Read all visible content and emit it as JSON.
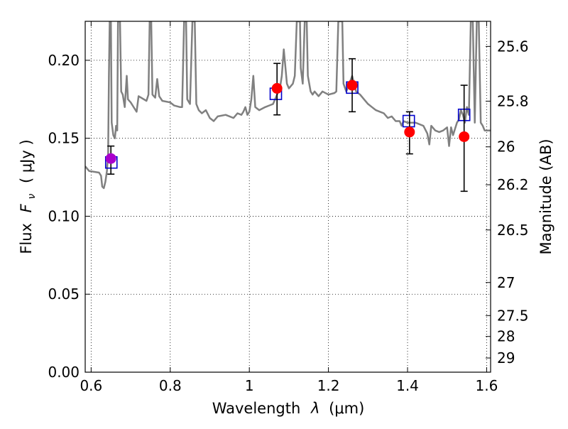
{
  "chart_data": {
    "type": "scatter",
    "xlabel_main": "Wavelength",
    "xlabel_symbol": "λ",
    "xlabel_unit": "(μm)",
    "ylabel_main": "Flux",
    "ylabel_symbol": "F",
    "ylabel_subscript": "ν",
    "ylabel_unit": "( μJy )",
    "y2label": "Magnitude (AB)",
    "xlim": [
      0.585,
      1.61
    ],
    "ylim": [
      0.0,
      0.225
    ],
    "grid": true,
    "grid_style": "dotted",
    "x_ticks": [
      0.6,
      0.8,
      1.0,
      1.2,
      1.4,
      1.6
    ],
    "x_tick_labels": [
      "0.6",
      "0.8",
      "1",
      "1.2",
      "1.4",
      "1.6"
    ],
    "y_ticks": [
      0.0,
      0.05,
      0.1,
      0.15,
      0.2
    ],
    "y_tick_labels": [
      "0.00",
      "0.05",
      "0.10",
      "0.15",
      "0.20"
    ],
    "y2_ticks": [
      {
        "label": "25.6",
        "flux": 0.2089
      },
      {
        "label": "25.8",
        "flux": 0.1738
      },
      {
        "label": "26",
        "flux": 0.1445
      },
      {
        "label": "26.2",
        "flux": 0.1202
      },
      {
        "label": "26.5",
        "flux": 0.0912
      },
      {
        "label": "27",
        "flux": 0.0575
      },
      {
        "label": "27.5",
        "flux": 0.0363
      },
      {
        "label": "28",
        "flux": 0.0229
      },
      {
        "label": "29",
        "flux": 0.0091
      }
    ],
    "model_spectrum": {
      "color": "#808080",
      "points": [
        [
          0.585,
          0.132
        ],
        [
          0.595,
          0.129
        ],
        [
          0.62,
          0.128
        ],
        [
          0.625,
          0.126
        ],
        [
          0.628,
          0.119
        ],
        [
          0.632,
          0.118
        ],
        [
          0.636,
          0.122
        ],
        [
          0.64,
          0.129
        ],
        [
          0.643,
          0.14
        ],
        [
          0.645,
          0.19
        ],
        [
          0.647,
          0.225
        ],
        [
          0.65,
          0.225
        ],
        [
          0.652,
          0.16
        ],
        [
          0.656,
          0.152
        ],
        [
          0.66,
          0.15
        ],
        [
          0.663,
          0.158
        ],
        [
          0.666,
          0.155
        ],
        [
          0.668,
          0.225
        ],
        [
          0.673,
          0.225
        ],
        [
          0.676,
          0.18
        ],
        [
          0.68,
          0.178
        ],
        [
          0.685,
          0.17
        ],
        [
          0.69,
          0.19
        ],
        [
          0.693,
          0.175
        ],
        [
          0.7,
          0.173
        ],
        [
          0.71,
          0.169
        ],
        [
          0.715,
          0.167
        ],
        [
          0.72,
          0.177
        ],
        [
          0.74,
          0.174
        ],
        [
          0.745,
          0.178
        ],
        [
          0.748,
          0.225
        ],
        [
          0.752,
          0.225
        ],
        [
          0.755,
          0.178
        ],
        [
          0.762,
          0.176
        ],
        [
          0.767,
          0.188
        ],
        [
          0.772,
          0.177
        ],
        [
          0.78,
          0.174
        ],
        [
          0.8,
          0.173
        ],
        [
          0.81,
          0.171
        ],
        [
          0.825,
          0.17
        ],
        [
          0.83,
          0.17
        ],
        [
          0.835,
          0.225
        ],
        [
          0.84,
          0.225
        ],
        [
          0.843,
          0.175
        ],
        [
          0.85,
          0.172
        ],
        [
          0.856,
          0.225
        ],
        [
          0.862,
          0.225
        ],
        [
          0.866,
          0.172
        ],
        [
          0.872,
          0.168
        ],
        [
          0.88,
          0.166
        ],
        [
          0.89,
          0.168
        ],
        [
          0.9,
          0.163
        ],
        [
          0.91,
          0.161
        ],
        [
          0.92,
          0.164
        ],
        [
          0.94,
          0.165
        ],
        [
          0.96,
          0.163
        ],
        [
          0.97,
          0.166
        ],
        [
          0.98,
          0.165
        ],
        [
          0.985,
          0.167
        ],
        [
          0.99,
          0.17
        ],
        [
          0.995,
          0.165
        ],
        [
          1.0,
          0.167
        ],
        [
          1.005,
          0.175
        ],
        [
          1.01,
          0.19
        ],
        [
          1.015,
          0.17
        ],
        [
          1.025,
          0.168
        ],
        [
          1.04,
          0.17
        ],
        [
          1.05,
          0.171
        ],
        [
          1.06,
          0.172
        ],
        [
          1.07,
          0.178
        ],
        [
          1.078,
          0.183
        ],
        [
          1.082,
          0.19
        ],
        [
          1.087,
          0.207
        ],
        [
          1.095,
          0.185
        ],
        [
          1.1,
          0.182
        ],
        [
          1.11,
          0.185
        ],
        [
          1.115,
          0.19
        ],
        [
          1.12,
          0.225
        ],
        [
          1.128,
          0.225
        ],
        [
          1.13,
          0.195
        ],
        [
          1.135,
          0.185
        ],
        [
          1.14,
          0.225
        ],
        [
          1.145,
          0.225
        ],
        [
          1.148,
          0.19
        ],
        [
          1.155,
          0.18
        ],
        [
          1.16,
          0.178
        ],
        [
          1.165,
          0.18
        ],
        [
          1.175,
          0.177
        ],
        [
          1.185,
          0.18
        ],
        [
          1.2,
          0.178
        ],
        [
          1.215,
          0.179
        ],
        [
          1.22,
          0.18
        ],
        [
          1.225,
          0.225
        ],
        [
          1.235,
          0.225
        ],
        [
          1.238,
          0.185
        ],
        [
          1.245,
          0.18
        ],
        [
          1.25,
          0.183
        ],
        [
          1.26,
          0.19
        ],
        [
          1.265,
          0.185
        ],
        [
          1.27,
          0.18
        ],
        [
          1.28,
          0.178
        ],
        [
          1.29,
          0.175
        ],
        [
          1.3,
          0.172
        ],
        [
          1.31,
          0.17
        ],
        [
          1.32,
          0.168
        ],
        [
          1.33,
          0.167
        ],
        [
          1.34,
          0.166
        ],
        [
          1.35,
          0.163
        ],
        [
          1.36,
          0.164
        ],
        [
          1.37,
          0.161
        ],
        [
          1.38,
          0.161
        ],
        [
          1.385,
          0.158
        ],
        [
          1.39,
          0.161
        ],
        [
          1.4,
          0.16
        ],
        [
          1.42,
          0.16
        ],
        [
          1.44,
          0.158
        ],
        [
          1.45,
          0.153
        ],
        [
          1.455,
          0.146
        ],
        [
          1.46,
          0.158
        ],
        [
          1.47,
          0.155
        ],
        [
          1.48,
          0.154
        ],
        [
          1.49,
          0.155
        ],
        [
          1.5,
          0.157
        ],
        [
          1.505,
          0.145
        ],
        [
          1.51,
          0.157
        ],
        [
          1.515,
          0.152
        ],
        [
          1.525,
          0.16
        ],
        [
          1.53,
          0.162
        ],
        [
          1.535,
          0.168
        ],
        [
          1.54,
          0.165
        ],
        [
          1.545,
          0.16
        ],
        [
          1.55,
          0.17
        ],
        [
          1.555,
          0.165
        ],
        [
          1.56,
          0.225
        ],
        [
          1.565,
          0.225
        ],
        [
          1.57,
          0.16
        ],
        [
          1.575,
          0.225
        ],
        [
          1.58,
          0.225
        ],
        [
          1.585,
          0.16
        ],
        [
          1.59,
          0.158
        ],
        [
          1.595,
          0.155
        ],
        [
          1.61,
          0.155
        ]
      ]
    },
    "model_photometry": {
      "marker": "open-square",
      "color": "#0000cc",
      "points": [
        {
          "x": 0.651,
          "y": 0.1345
        },
        {
          "x": 1.067,
          "y": 0.1785
        },
        {
          "x": 1.26,
          "y": 0.1825
        },
        {
          "x": 1.403,
          "y": 0.161
        },
        {
          "x": 1.543,
          "y": 0.165
        }
      ]
    },
    "observed_photometry": {
      "marker": "filled-circle",
      "color": "#ff0000",
      "first_point_color": "#aa00cc",
      "points": [
        {
          "x": 0.65,
          "y": 0.137,
          "yerr_low": 0.127,
          "yerr_high": 0.145
        },
        {
          "x": 1.07,
          "y": 0.182,
          "yerr_low": 0.165,
          "yerr_high": 0.198
        },
        {
          "x": 1.26,
          "y": 0.184,
          "yerr_low": 0.167,
          "yerr_high": 0.201
        },
        {
          "x": 1.405,
          "y": 0.154,
          "yerr_low": 0.14,
          "yerr_high": 0.167
        },
        {
          "x": 1.543,
          "y": 0.151,
          "yerr_low": 0.116,
          "yerr_high": 0.184
        }
      ]
    }
  }
}
